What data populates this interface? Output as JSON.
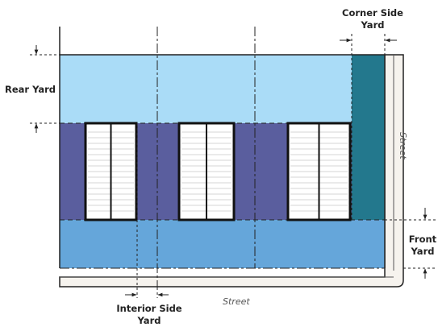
{
  "labels": {
    "rear_yard": "Rear Yard",
    "corner_side_yard_line1": "Corner Side",
    "corner_side_yard_line2": "Yard",
    "front_yard_line1": "Front",
    "front_yard_line2": "Yard",
    "interior_side_yard_line1": "Interior Side",
    "interior_side_yard_line2": "Yard",
    "street_bottom": "Street",
    "street_right": "Street"
  },
  "colors": {
    "rear_yard": "#aadcf7",
    "front_yard": "#65a6da",
    "corner_side_yard": "#23788d",
    "building_zone": "#5a5e9e",
    "street_fill": "#f6f3ee",
    "unit_fill": "#ffffff"
  },
  "units": [
    {
      "name": "unit-1",
      "shutter_lines": 16
    },
    {
      "name": "unit-2",
      "shutter_lines": 16
    },
    {
      "name": "unit-3",
      "shutter_lines": 16
    }
  ]
}
